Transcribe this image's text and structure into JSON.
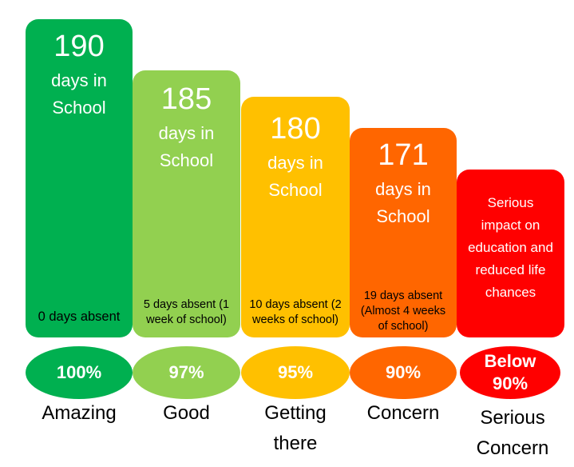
{
  "chart_data": {
    "type": "bar",
    "title": "",
    "categories": [
      "Amazing",
      "Good",
      "Getting there",
      "Concern",
      "Serious Concern"
    ],
    "series": [
      {
        "values": [
          190,
          185,
          180,
          171,
          null
        ]
      }
    ],
    "bars": [
      {
        "days": "190",
        "days_text": "days in",
        "school_text": "School",
        "absent": "0 days absent",
        "percent": "100%",
        "label": "Amazing",
        "color": "#00B050"
      },
      {
        "days": "185",
        "days_text": "days in",
        "school_text": "School",
        "absent": "5 days absent (1 week of school)",
        "percent": "97%",
        "label": "Good",
        "color": "#92D050"
      },
      {
        "days": "180",
        "days_text": "days in",
        "school_text": "School",
        "absent": "10 days absent (2 weeks of school)",
        "percent": "95%",
        "label": "Getting there",
        "color": "#FFC000"
      },
      {
        "days": "171",
        "days_text": "days in",
        "school_text": "School",
        "absent": "19 days absent (Almost 4 weeks of school)",
        "percent": "90%",
        "label": "Concern",
        "color": "#FF6600"
      },
      {
        "impact": "Serious impact on education and reduced life chances",
        "percent": "Below 90%",
        "label": "Serious Concern",
        "color": "#FF0000"
      }
    ],
    "ylim": [
      0,
      190
    ]
  }
}
